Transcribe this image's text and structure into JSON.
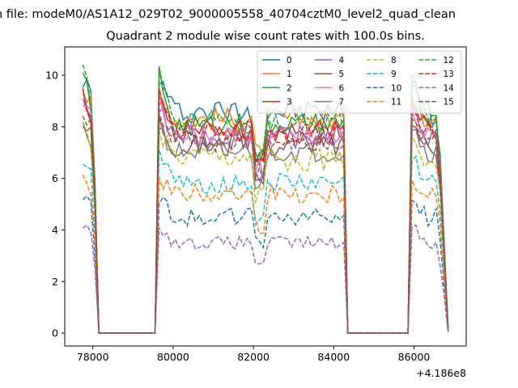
{
  "chart_data": {
    "type": "line",
    "suptitle": "n file: modeM0/AS1A12_029T02_9000005558_40704cztM0_level2_quad_clean",
    "title": "Quadrant 2 module wise count rates with 100.0s bins.",
    "xlabel": "",
    "ylabel": "",
    "offset_label": "+4.186e8",
    "xlim": [
      77300,
      87300
    ],
    "ylim": [
      -0.5,
      11.1
    ],
    "xticks": [
      78000,
      80000,
      82000,
      84000,
      86000
    ],
    "xtick_labels": [
      "78000",
      "80000",
      "82000",
      "84000",
      "86000"
    ],
    "yticks": [
      0,
      2,
      4,
      6,
      8,
      10
    ],
    "ytick_labels": [
      "0",
      "2",
      "4",
      "6",
      "8",
      "10"
    ],
    "legend_loc": "upper right",
    "segments": [
      {
        "start": 77750,
        "end": 78150
      },
      {
        "start": 79650,
        "end": 84250
      },
      {
        "start": 85950,
        "end": 86850
      }
    ],
    "series": [
      {
        "name": "0",
        "color": "#1f77b4",
        "style": "solid",
        "level": 8.6,
        "amp": 0.5,
        "peak": 10.1
      },
      {
        "name": "1",
        "color": "#ff7f0e",
        "style": "solid",
        "level": 8.3,
        "amp": 0.45,
        "peak": 9.6
      },
      {
        "name": "2",
        "color": "#2ca02c",
        "style": "solid",
        "level": 8.1,
        "amp": 0.45,
        "peak": 10.3
      },
      {
        "name": "3",
        "color": "#d62728",
        "style": "solid",
        "level": 7.9,
        "amp": 0.45,
        "peak": 9.4
      },
      {
        "name": "4",
        "color": "#9467bd",
        "style": "solid",
        "level": 7.6,
        "amp": 0.45,
        "peak": 8.8
      },
      {
        "name": "5",
        "color": "#8c564b",
        "style": "solid",
        "level": 7.3,
        "amp": 0.45,
        "peak": 8.4
      },
      {
        "name": "6",
        "color": "#e377c2",
        "style": "solid",
        "level": 7.7,
        "amp": 0.45,
        "peak": 9.0
      },
      {
        "name": "7",
        "color": "#7f7f7f",
        "style": "solid",
        "level": 7.0,
        "amp": 0.4,
        "peak": 8.2
      },
      {
        "name": "8",
        "color": "#bcbd22",
        "style": "dashed",
        "level": 6.7,
        "amp": 0.45,
        "peak": 8.0
      },
      {
        "name": "9",
        "color": "#17becf",
        "style": "dashed",
        "level": 5.8,
        "amp": 0.4,
        "peak": 7.0
      },
      {
        "name": "10",
        "color": "#1f77b4",
        "style": "dashed",
        "level": 4.5,
        "amp": 0.35,
        "peak": 5.4
      },
      {
        "name": "11",
        "color": "#ff7f0e",
        "style": "dashed",
        "level": 5.4,
        "amp": 0.4,
        "peak": 6.2
      },
      {
        "name": "12",
        "color": "#2ca02c",
        "style": "dashed",
        "level": 8.2,
        "amp": 0.45,
        "peak": 10.4
      },
      {
        "name": "13",
        "color": "#d62728",
        "style": "dashed",
        "level": 7.8,
        "amp": 0.45,
        "peak": 9.2
      },
      {
        "name": "14",
        "color": "#9467bd",
        "style": "dashed",
        "level": 3.5,
        "amp": 0.25,
        "peak": 4.3
      },
      {
        "name": "15",
        "color": "#8c564b",
        "style": "dashed",
        "level": 7.5,
        "amp": 0.45,
        "peak": 8.6
      }
    ]
  }
}
